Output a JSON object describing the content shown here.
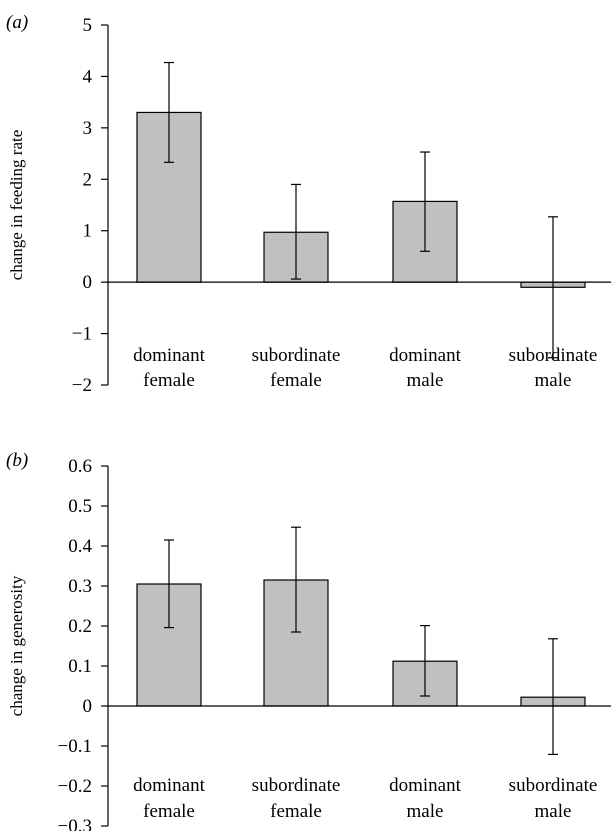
{
  "chart_data": [
    {
      "type": "bar",
      "panel_label": "(a)",
      "ylabel": "change in feeding rate",
      "ylim": [
        -2,
        5
      ],
      "yticks": [
        -2,
        -1,
        0,
        1,
        2,
        3,
        4,
        5
      ],
      "ytick_labels": [
        "−2",
        "−1",
        "0",
        "1",
        "2",
        "3",
        "4",
        "5"
      ],
      "categories": [
        [
          "dominant",
          "female"
        ],
        [
          "subordinate",
          "female"
        ],
        [
          "dominant",
          "male"
        ],
        [
          "subordinate",
          "male"
        ]
      ],
      "values": [
        3.3,
        0.97,
        1.57,
        -0.1
      ],
      "error_low": [
        2.33,
        0.06,
        0.6,
        -1.47
      ],
      "error_high": [
        4.27,
        1.9,
        2.53,
        1.27
      ],
      "bar_color": "#c0c0c0",
      "grid": false
    },
    {
      "type": "bar",
      "panel_label": "(b)",
      "ylabel": "change in generosity",
      "ylim": [
        -0.3,
        0.6
      ],
      "yticks": [
        -0.3,
        -0.2,
        -0.1,
        0,
        0.1,
        0.2,
        0.3,
        0.4,
        0.5,
        0.6
      ],
      "ytick_labels": [
        "−0.3",
        "−0.2",
        "−0.1",
        "0",
        "0.1",
        "0.2",
        "0.3",
        "0.4",
        "0.5",
        "0.6"
      ],
      "categories": [
        [
          "dominant",
          "female"
        ],
        [
          "subordinate",
          "female"
        ],
        [
          "dominant",
          "male"
        ],
        [
          "subordinate",
          "male"
        ]
      ],
      "values": [
        0.305,
        0.315,
        0.112,
        0.022
      ],
      "error_low": [
        0.196,
        0.185,
        0.025,
        -0.121
      ],
      "error_high": [
        0.415,
        0.447,
        0.201,
        0.168
      ],
      "bar_color": "#c0c0c0",
      "grid": false
    }
  ]
}
